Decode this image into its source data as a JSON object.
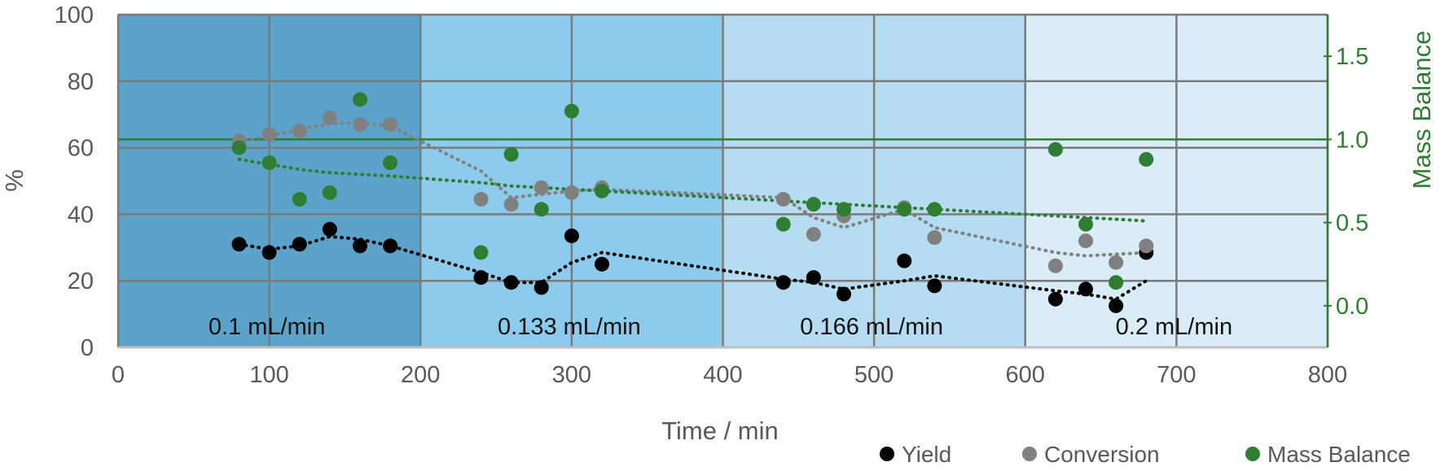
{
  "chart_data": {
    "type": "scatter",
    "xlabel": "Time / min",
    "ylabel": "%",
    "y2label": "Mass Balance",
    "xlim": [
      0,
      800
    ],
    "ylim": [
      0,
      100
    ],
    "y2lim": [
      -0.25,
      1.75
    ],
    "x_ticks": [
      0,
      100,
      200,
      300,
      400,
      500,
      600,
      700,
      800
    ],
    "y_ticks": [
      0,
      20,
      40,
      60,
      80,
      100
    ],
    "y2_ticks": [
      "0.0",
      "0.5",
      "1.0",
      "1.5"
    ],
    "grid": true,
    "legend_position": "bottom-right",
    "reference_line_y2": 1.0,
    "regions": [
      {
        "label": "0.1 mL/min",
        "x_start": 0,
        "x_end": 200,
        "color": "#5ba3c9"
      },
      {
        "label": "0.133 mL/min",
        "x_start": 200,
        "x_end": 400,
        "color": "#8ccbeb"
      },
      {
        "label": "0.166 mL/min",
        "x_start": 400,
        "x_end": 600,
        "color": "#b5dcf0"
      },
      {
        "label": "0.2 mL/min",
        "x_start": 600,
        "x_end": 800,
        "color": "#d9ecf7"
      }
    ],
    "series": [
      {
        "name": "Yield",
        "color": "#000000",
        "axis": "left",
        "x": [
          80,
          100,
          120,
          140,
          160,
          180,
          240,
          260,
          280,
          300,
          320,
          440,
          460,
          480,
          520,
          540,
          620,
          640,
          660,
          680
        ],
        "values": [
          31,
          28.5,
          31,
          35.5,
          30.5,
          30.5,
          21,
          19.5,
          18,
          33.5,
          25,
          19.5,
          21,
          16,
          26,
          18.5,
          14.5,
          17.5,
          12.5,
          28.5
        ],
        "trend": [
          31,
          29.5,
          30.5,
          33.3,
          32.5,
          30.5,
          22.5,
          19.5,
          19.5,
          25.5,
          28.5,
          20.5,
          19.5,
          17.5,
          20,
          21.5,
          17,
          16,
          14.5,
          20
        ]
      },
      {
        "name": "Conversion",
        "color": "#808080",
        "axis": "left",
        "x": [
          80,
          100,
          120,
          140,
          160,
          180,
          240,
          260,
          280,
          300,
          320,
          440,
          460,
          480,
          520,
          540,
          620,
          640,
          660,
          680
        ],
        "values": [
          62,
          64,
          65,
          69,
          67,
          67,
          44.5,
          43,
          48,
          46.5,
          48,
          44.5,
          34,
          39.5,
          42,
          33,
          24.5,
          32,
          25.5,
          30.5
        ],
        "trend": [
          62,
          63.5,
          65.5,
          67.2,
          67.6,
          66.5,
          53,
          45,
          46,
          47,
          47.5,
          45,
          39,
          36,
          41.5,
          36,
          28.5,
          27.5,
          28,
          28.5
        ]
      },
      {
        "name": "Mass Balance",
        "color": "#2e7d32",
        "axis": "right",
        "x": [
          80,
          100,
          120,
          140,
          160,
          180,
          240,
          260,
          280,
          300,
          320,
          440,
          460,
          480,
          520,
          540,
          620,
          640,
          660,
          680
        ],
        "values": [
          0.95,
          0.86,
          0.64,
          0.68,
          1.24,
          0.86,
          0.32,
          0.91,
          0.58,
          1.17,
          0.69,
          0.49,
          0.61,
          0.58,
          0.58,
          0.58,
          0.94,
          0.49,
          0.14,
          0.88
        ],
        "trend": [
          0.88,
          0.85,
          0.82,
          0.8,
          0.79,
          0.78,
          0.74,
          0.72,
          0.71,
          0.7,
          0.69,
          0.63,
          0.62,
          0.61,
          0.59,
          0.58,
          0.54,
          0.53,
          0.52,
          0.51
        ]
      }
    ]
  }
}
